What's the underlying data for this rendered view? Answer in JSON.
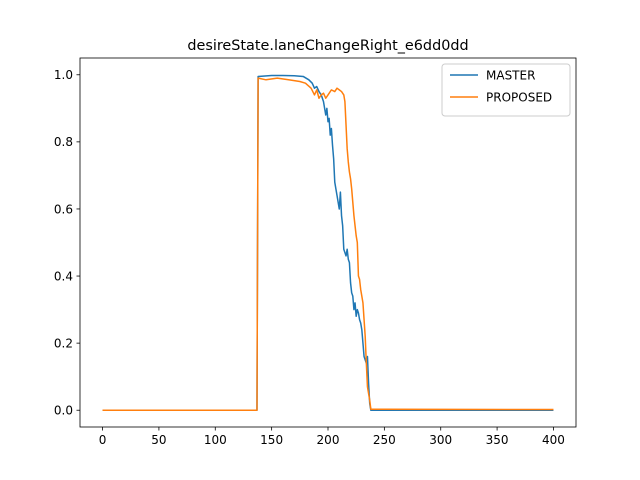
{
  "chart_data": {
    "type": "line",
    "title": "desireState.laneChangeRight_e6dd0dd",
    "xlabel": "",
    "ylabel": "",
    "xlim": [
      -20,
      420
    ],
    "ylim": [
      -0.05,
      1.05
    ],
    "xticks": [
      0,
      50,
      100,
      150,
      200,
      250,
      300,
      350,
      400
    ],
    "yticks": [
      0.0,
      0.2,
      0.4,
      0.6,
      0.8,
      1.0
    ],
    "xtick_labels": [
      "0",
      "50",
      "100",
      "150",
      "200",
      "250",
      "300",
      "350",
      "400"
    ],
    "ytick_labels": [
      "0.0",
      "0.2",
      "0.4",
      "0.6",
      "0.8",
      "1.0"
    ],
    "grid": false,
    "legend_position": "top-right",
    "series": [
      {
        "name": "MASTER",
        "color": "#1f77b4",
        "points": [
          [
            0,
            0.0
          ],
          [
            137,
            0.0
          ],
          [
            138,
            0.995
          ],
          [
            150,
            0.998
          ],
          [
            160,
            0.998
          ],
          [
            170,
            0.997
          ],
          [
            178,
            0.995
          ],
          [
            183,
            0.985
          ],
          [
            186,
            0.975
          ],
          [
            188,
            0.96
          ],
          [
            190,
            0.965
          ],
          [
            192,
            0.95
          ],
          [
            194,
            0.94
          ],
          [
            196,
            0.92
          ],
          [
            198,
            0.88
          ],
          [
            199,
            0.9
          ],
          [
            200,
            0.86
          ],
          [
            201,
            0.87
          ],
          [
            202,
            0.82
          ],
          [
            203,
            0.84
          ],
          [
            204,
            0.79
          ],
          [
            205,
            0.75
          ],
          [
            206,
            0.68
          ],
          [
            207,
            0.66
          ],
          [
            208,
            0.64
          ],
          [
            209,
            0.62
          ],
          [
            210,
            0.6
          ],
          [
            211,
            0.65
          ],
          [
            212,
            0.58
          ],
          [
            213,
            0.55
          ],
          [
            214,
            0.48
          ],
          [
            215,
            0.47
          ],
          [
            216,
            0.46
          ],
          [
            217,
            0.48
          ],
          [
            218,
            0.45
          ],
          [
            219,
            0.44
          ],
          [
            220,
            0.38
          ],
          [
            221,
            0.35
          ],
          [
            222,
            0.34
          ],
          [
            223,
            0.3
          ],
          [
            224,
            0.32
          ],
          [
            225,
            0.28
          ],
          [
            226,
            0.3
          ],
          [
            227,
            0.29
          ],
          [
            228,
            0.27
          ],
          [
            229,
            0.26
          ],
          [
            230,
            0.24
          ],
          [
            231,
            0.2
          ],
          [
            232,
            0.16
          ],
          [
            233,
            0.15
          ],
          [
            234,
            0.14
          ],
          [
            235,
            0.16
          ],
          [
            236,
            0.08
          ],
          [
            237,
            0.02
          ],
          [
            238,
            0.0
          ],
          [
            400,
            0.0
          ]
        ]
      },
      {
        "name": "PROPOSED",
        "color": "#ff7f0e",
        "points": [
          [
            0,
            0.0
          ],
          [
            137,
            0.0
          ],
          [
            138,
            0.99
          ],
          [
            145,
            0.985
          ],
          [
            155,
            0.99
          ],
          [
            165,
            0.985
          ],
          [
            175,
            0.98
          ],
          [
            180,
            0.975
          ],
          [
            185,
            0.96
          ],
          [
            188,
            0.94
          ],
          [
            190,
            0.955
          ],
          [
            192,
            0.93
          ],
          [
            194,
            0.94
          ],
          [
            196,
            0.945
          ],
          [
            198,
            0.93
          ],
          [
            200,
            0.94
          ],
          [
            203,
            0.955
          ],
          [
            206,
            0.95
          ],
          [
            208,
            0.96
          ],
          [
            210,
            0.955
          ],
          [
            212,
            0.95
          ],
          [
            214,
            0.94
          ],
          [
            215,
            0.92
          ],
          [
            216,
            0.85
          ],
          [
            217,
            0.78
          ],
          [
            218,
            0.74
          ],
          [
            219,
            0.71
          ],
          [
            220,
            0.69
          ],
          [
            221,
            0.66
          ],
          [
            222,
            0.62
          ],
          [
            223,
            0.58
          ],
          [
            224,
            0.55
          ],
          [
            225,
            0.52
          ],
          [
            226,
            0.5
          ],
          [
            227,
            0.4
          ],
          [
            228,
            0.39
          ],
          [
            229,
            0.36
          ],
          [
            230,
            0.34
          ],
          [
            231,
            0.32
          ],
          [
            232,
            0.27
          ],
          [
            233,
            0.22
          ],
          [
            234,
            0.14
          ],
          [
            235,
            0.07
          ],
          [
            236,
            0.05
          ],
          [
            237,
            0.03
          ],
          [
            238,
            0.003
          ],
          [
            400,
            0.002
          ]
        ]
      }
    ]
  }
}
